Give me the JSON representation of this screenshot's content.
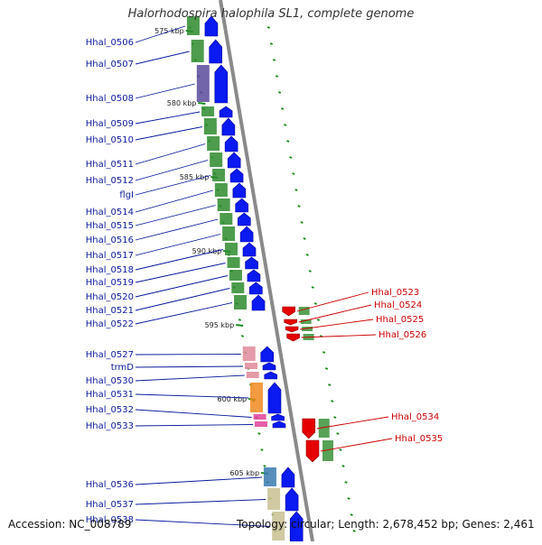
{
  "title": "Halorhodospira halophila SL1, complete genome",
  "footer": {
    "accession": "Accession: NC_008789",
    "topology": "Topology: circular; Length: 2,678,452 bp; Genes: 2,461"
  },
  "colors": {
    "backbone": "#8a8a8a",
    "forward_gene": "#0a1af0",
    "reverse_gene": "#e50000",
    "left_label": "#0a1a9e",
    "right_label": "#cc0000",
    "tick": "#1a8a1a",
    "cog_green": "#2e8b2e",
    "cog_purple": "#5a4a9a",
    "cog_pink": "#e08a9a",
    "cog_orange": "#f08a20",
    "cog_magenta": "#e0409a",
    "cog_steelblue": "#3a7ab0",
    "cog_khaki": "#c8c090"
  },
  "kbp_ticks": [
    {
      "label": "575 kbp"
    },
    {
      "label": "580 kbp"
    },
    {
      "label": "585 kbp"
    },
    {
      "label": "590 kbp"
    },
    {
      "label": "595 kbp"
    },
    {
      "label": "600 kbp"
    },
    {
      "label": "605 kbp"
    }
  ],
  "forward_genes": [
    {
      "label": "Hhal_0506"
    },
    {
      "label": "Hhal_0507"
    },
    {
      "label": "Hhal_0508"
    },
    {
      "label": "Hhal_0509"
    },
    {
      "label": "Hhal_0510"
    },
    {
      "label": "Hhal_0511"
    },
    {
      "label": "Hhal_0512"
    },
    {
      "label": "flgI"
    },
    {
      "label": "Hhal_0514"
    },
    {
      "label": "Hhal_0515"
    },
    {
      "label": "Hhal_0516"
    },
    {
      "label": "Hhal_0517"
    },
    {
      "label": "Hhal_0518"
    },
    {
      "label": "Hhal_0519"
    },
    {
      "label": "Hhal_0520"
    },
    {
      "label": "Hhal_0521"
    },
    {
      "label": "Hhal_0522"
    },
    {
      "label": "Hhal_0527"
    },
    {
      "label": "trmD"
    },
    {
      "label": "Hhal_0530"
    },
    {
      "label": "Hhal_0531"
    },
    {
      "label": "Hhal_0532"
    },
    {
      "label": "Hhal_0533"
    },
    {
      "label": "Hhal_0536"
    },
    {
      "label": "Hhal_0537"
    },
    {
      "label": "Hhal_0538"
    }
  ],
  "reverse_genes": [
    {
      "label": "Hhal_0523"
    },
    {
      "label": "Hhal_0524"
    },
    {
      "label": "Hhal_0525"
    },
    {
      "label": "Hhal_0526"
    },
    {
      "label": "Hhal_0534"
    },
    {
      "label": "Hhal_0535"
    }
  ]
}
